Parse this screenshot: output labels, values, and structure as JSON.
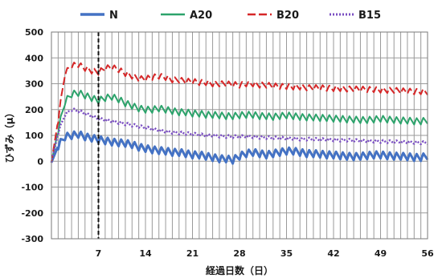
{
  "chart_data": {
    "type": "line",
    "xlabel": "経過日数（日）",
    "ylabel": "ひずみ（μ）",
    "xlim": [
      0,
      56
    ],
    "ylim": [
      -300,
      500
    ],
    "x_ticks": [
      7,
      14,
      21,
      28,
      35,
      42,
      49,
      56
    ],
    "y_ticks": [
      -300,
      -200,
      -100,
      0,
      100,
      200,
      300,
      400,
      500
    ],
    "grid": "vertical lines each day, horizontal lines every 100",
    "legend": "top",
    "marker_line": {
      "x": 7,
      "style": "dashed",
      "color": "#111111"
    },
    "series": [
      {
        "name": "N",
        "color": "#4472c4",
        "dash": "solid",
        "width": 3,
        "values_per_day": [
          -5,
          60,
          95,
          100,
          105,
          95,
          90,
          85,
          80,
          75,
          72,
          70,
          65,
          55,
          50,
          45,
          42,
          40,
          35,
          35,
          30,
          25,
          25,
          20,
          15,
          10,
          10,
          5,
          20,
          30,
          35,
          30,
          25,
          30,
          35,
          40,
          40,
          35,
          30,
          30,
          28,
          25,
          25,
          22,
          20,
          18,
          20,
          22,
          25,
          25,
          22,
          20,
          20,
          18,
          15,
          15,
          20
        ]
      },
      {
        "name": "A20",
        "color": "#2ca36b",
        "dash": "solid",
        "width": 2,
        "values_per_day": [
          -5,
          120,
          230,
          260,
          265,
          255,
          245,
          235,
          245,
          250,
          240,
          225,
          215,
          205,
          200,
          200,
          205,
          200,
          195,
          190,
          190,
          185,
          185,
          180,
          180,
          178,
          175,
          175,
          178,
          180,
          180,
          175,
          175,
          172,
          175,
          178,
          175,
          172,
          170,
          170,
          168,
          168,
          165,
          165,
          162,
          162,
          160,
          160,
          162,
          165,
          162,
          160,
          158,
          158,
          155,
          155,
          158
        ]
      },
      {
        "name": "B20",
        "color": "#d62728",
        "dash": "10,4",
        "width": 2,
        "values_per_day": [
          -5,
          160,
          340,
          370,
          375,
          360,
          350,
          345,
          360,
          365,
          355,
          340,
          330,
          320,
          320,
          325,
          330,
          325,
          315,
          315,
          310,
          310,
          305,
          305,
          300,
          300,
          300,
          298,
          295,
          300,
          300,
          295,
          295,
          292,
          290,
          290,
          288,
          288,
          285,
          285,
          285,
          283,
          282,
          282,
          280,
          280,
          280,
          278,
          278,
          276,
          275,
          275,
          273,
          272,
          270,
          270,
          268
        ]
      },
      {
        "name": "B15",
        "color": "#7a4ec2",
        "dash": "2,2",
        "width": 2.5,
        "values_per_day": [
          -5,
          110,
          180,
          200,
          195,
          185,
          175,
          165,
          160,
          155,
          150,
          145,
          140,
          135,
          130,
          125,
          120,
          115,
          112,
          110,
          108,
          105,
          103,
          100,
          100,
          98,
          96,
          95,
          95,
          96,
          95,
          93,
          92,
          90,
          90,
          88,
          88,
          86,
          86,
          85,
          84,
          84,
          83,
          82,
          82,
          80,
          80,
          78,
          78,
          77,
          76,
          75,
          75,
          74,
          73,
          72,
          72
        ]
      }
    ]
  }
}
